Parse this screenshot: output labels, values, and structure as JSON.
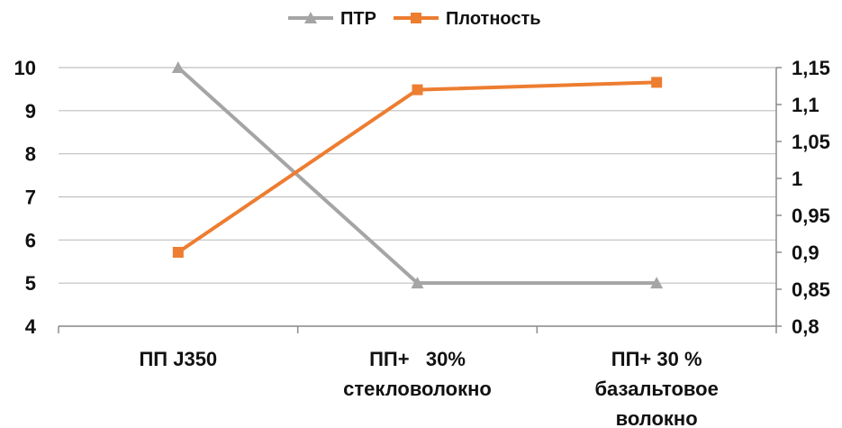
{
  "chart_data": {
    "type": "line",
    "categories": [
      [
        "ПП J350"
      ],
      [
        "ПП+   30%",
        "стекловолокно"
      ],
      [
        "ПП+ 30 %",
        "базальтовое",
        "волокно"
      ]
    ],
    "y_left": {
      "ylim": [
        4,
        10
      ],
      "ticks": [
        "4",
        "5",
        "6",
        "7",
        "8",
        "9",
        "10"
      ]
    },
    "y_right": {
      "ylim": [
        0.8,
        1.15
      ],
      "ticks": [
        "0,8",
        "0,85",
        "0,9",
        "0,95",
        "1",
        "1,05",
        "1,1",
        "1,15"
      ]
    },
    "series": [
      {
        "name": "ПТР",
        "axis": "left",
        "marker": "triangle",
        "color": "#a5a5a5",
        "values": [
          10,
          5,
          5
        ]
      },
      {
        "name": "Плотность",
        "axis": "right",
        "marker": "square",
        "color": "#ed7d31",
        "values": [
          0.9,
          1.12,
          1.13
        ]
      }
    ],
    "legend_position": "top-center",
    "grid": true
  }
}
